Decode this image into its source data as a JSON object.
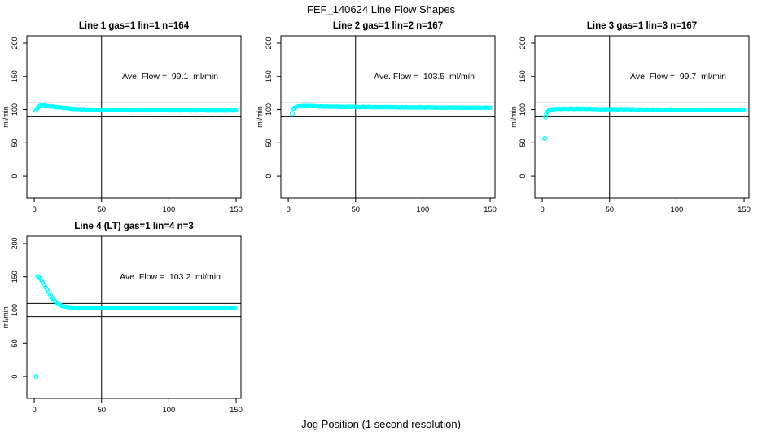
{
  "page": {
    "title": "FEF_140624  Line Flow Shapes",
    "xlabel": "Jog Position (1 second resolution)"
  },
  "colors": {
    "points": "#00FFFF",
    "axis": "#000000",
    "text": "#000000",
    "background": "#FFFFFF"
  },
  "chart_data": [
    {
      "type": "scatter",
      "title": "Line 1 gas=1 lin=1 n=164",
      "annotation": "Ave. Flow =  99.1  ml/min",
      "ave_flow_ml_min": 99.1,
      "n": 164,
      "ylabel": "ml/min",
      "xlim": [
        -5.5,
        153.6
      ],
      "ylim": [
        -33,
        211
      ],
      "xticks": [
        0,
        50,
        100,
        150
      ],
      "yticks": [
        0,
        50,
        100,
        150,
        200
      ],
      "hlines": [
        90,
        110
      ],
      "vline": 50,
      "grid": false,
      "marker": "open-circle",
      "annotation_pos": [
        101,
        150
      ],
      "seed": 1,
      "noise": 0.45,
      "x_step": 1,
      "series_keypoints": [
        [
          1,
          98.3
        ],
        [
          2,
          100.8
        ],
        [
          3,
          103.6
        ],
        [
          4,
          105.4
        ],
        [
          5,
          106.2
        ],
        [
          7,
          106.1
        ],
        [
          9,
          105.6
        ],
        [
          12,
          104.8
        ],
        [
          15,
          104.1
        ],
        [
          18,
          103.3
        ],
        [
          21,
          102.6
        ],
        [
          24,
          102.0
        ],
        [
          27,
          101.5
        ],
        [
          30,
          101.1
        ],
        [
          34,
          100.6
        ],
        [
          38,
          100.2
        ],
        [
          42,
          99.9
        ],
        [
          46,
          99.7
        ],
        [
          50,
          99.5
        ],
        [
          55,
          99.4
        ],
        [
          60,
          99.3
        ],
        [
          70,
          99.2
        ],
        [
          80,
          99.1
        ],
        [
          90,
          99.0
        ],
        [
          100,
          99.0
        ],
        [
          110,
          98.9
        ],
        [
          120,
          98.9
        ],
        [
          130,
          98.8
        ],
        [
          140,
          98.8
        ],
        [
          150,
          98.9
        ]
      ],
      "outliers": []
    },
    {
      "type": "scatter",
      "title": "Line 2 gas=1 lin=2 n=167",
      "annotation": "Ave. Flow =  103.5  ml/min",
      "ave_flow_ml_min": 103.5,
      "n": 167,
      "ylabel": "ml/min",
      "xlim": [
        -5.5,
        153.6
      ],
      "ylim": [
        -33,
        211
      ],
      "xticks": [
        0,
        50,
        100,
        150
      ],
      "yticks": [
        0,
        50,
        100,
        150,
        200
      ],
      "hlines": [
        90,
        110
      ],
      "vline": 50,
      "grid": false,
      "marker": "open-circle",
      "annotation_pos": [
        101,
        150
      ],
      "seed": 2,
      "noise": 0.4,
      "x_step": 1,
      "series_keypoints": [
        [
          4,
          100.8
        ],
        [
          5,
          102.6
        ],
        [
          6,
          103.9
        ],
        [
          7,
          104.5
        ],
        [
          8,
          104.9
        ],
        [
          10,
          105.1
        ],
        [
          13,
          105.3
        ],
        [
          16,
          105.2
        ],
        [
          20,
          105.0
        ],
        [
          25,
          104.7
        ],
        [
          30,
          104.5
        ],
        [
          40,
          104.1
        ],
        [
          50,
          103.9
        ],
        [
          60,
          103.7
        ],
        [
          70,
          103.5
        ],
        [
          80,
          103.4
        ],
        [
          90,
          103.3
        ],
        [
          100,
          103.2
        ],
        [
          110,
          103.1
        ],
        [
          120,
          103.0
        ],
        [
          130,
          102.9
        ],
        [
          140,
          102.8
        ],
        [
          150,
          102.8
        ]
      ],
      "outliers": [
        [
          3,
          94
        ]
      ]
    },
    {
      "type": "scatter",
      "title": "Line 3 gas=1 lin=3 n=167",
      "annotation": "Ave. Flow =  99.7  ml/min",
      "ave_flow_ml_min": 99.7,
      "n": 167,
      "ylabel": "ml/min",
      "xlim": [
        -5.5,
        153.6
      ],
      "ylim": [
        -33,
        211
      ],
      "xticks": [
        0,
        50,
        100,
        150
      ],
      "yticks": [
        0,
        50,
        100,
        150,
        200
      ],
      "hlines": [
        90,
        110
      ],
      "vline": 50,
      "grid": false,
      "marker": "open-circle",
      "annotation_pos": [
        101,
        150
      ],
      "seed": 3,
      "noise": 0.5,
      "x_step": 1,
      "series_keypoints": [
        [
          3,
          93.0
        ],
        [
          4,
          96.5
        ],
        [
          5,
          98.3
        ],
        [
          6,
          99.4
        ],
        [
          7,
          100.1
        ],
        [
          9,
          100.8
        ],
        [
          12,
          101.2
        ],
        [
          16,
          101.4
        ],
        [
          20,
          101.4
        ],
        [
          25,
          101.3
        ],
        [
          30,
          101.1
        ],
        [
          40,
          100.8
        ],
        [
          50,
          100.5
        ],
        [
          60,
          100.3
        ],
        [
          70,
          100.1
        ],
        [
          80,
          100.0
        ],
        [
          90,
          99.9
        ],
        [
          100,
          99.8
        ],
        [
          110,
          99.7
        ],
        [
          120,
          99.6
        ],
        [
          130,
          99.5
        ],
        [
          140,
          99.5
        ],
        [
          150,
          99.6
        ]
      ],
      "outliers": [
        [
          2,
          56.5
        ],
        [
          2.5,
          89
        ]
      ]
    },
    {
      "type": "scatter",
      "title": "Line 4 (LT) gas=1 lin=4 n=3",
      "annotation": "Ave. Flow =  103.2  ml/min",
      "ave_flow_ml_min": 103.2,
      "n": 3,
      "ylabel": "ml/min",
      "xlim": [
        -5.5,
        153.6
      ],
      "ylim": [
        -33,
        211
      ],
      "xticks": [
        0,
        50,
        100,
        150
      ],
      "yticks": [
        0,
        50,
        100,
        150,
        200
      ],
      "hlines": [
        90,
        110
      ],
      "vline": 50,
      "grid": false,
      "marker": "open-circle",
      "annotation_pos": [
        101,
        150
      ],
      "seed": 4,
      "noise": 0.35,
      "x_step": 1,
      "series_keypoints": [
        [
          2.5,
          151
        ],
        [
          3,
          150.5
        ],
        [
          4,
          148.5
        ],
        [
          5,
          146
        ],
        [
          6,
          143
        ],
        [
          7,
          139.5
        ],
        [
          8,
          136
        ],
        [
          9,
          132.5
        ],
        [
          10,
          129
        ],
        [
          11,
          125.5
        ],
        [
          12,
          122.5
        ],
        [
          13,
          119.5
        ],
        [
          14,
          117
        ],
        [
          15,
          114.5
        ],
        [
          16,
          112.5
        ],
        [
          17,
          110.8
        ],
        [
          18,
          109.3
        ],
        [
          19,
          108
        ],
        [
          20,
          107
        ],
        [
          21,
          106.2
        ],
        [
          22,
          105.5
        ],
        [
          24,
          104.6
        ],
        [
          26,
          104.1
        ],
        [
          28,
          103.7
        ],
        [
          30,
          103.5
        ],
        [
          35,
          103.2
        ],
        [
          40,
          103.1
        ],
        [
          50,
          103.0
        ],
        [
          60,
          103.0
        ],
        [
          70,
          102.9
        ],
        [
          80,
          102.9
        ],
        [
          90,
          102.9
        ],
        [
          100,
          102.8
        ],
        [
          110,
          102.8
        ],
        [
          120,
          102.9
        ],
        [
          130,
          102.8
        ],
        [
          140,
          102.9
        ],
        [
          150,
          103.0
        ]
      ],
      "outliers": [
        [
          1.5,
          0
        ]
      ]
    }
  ]
}
